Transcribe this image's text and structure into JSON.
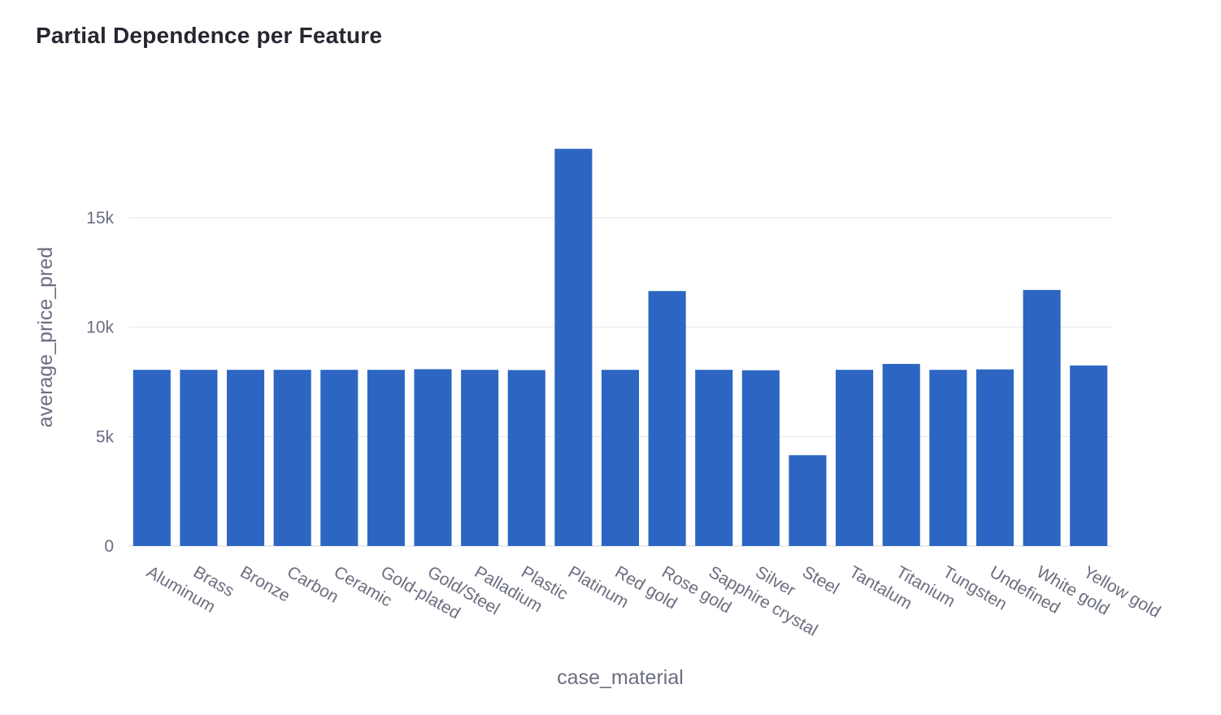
{
  "title": "Partial Dependence per Feature",
  "chart_data": {
    "type": "bar",
    "title": "Partial Dependence per Feature",
    "xlabel": "case_material",
    "ylabel": "average_price_pred",
    "categories": [
      "Aluminum",
      "Brass",
      "Bronze",
      "Carbon",
      "Ceramic",
      "Gold-plated",
      "Gold/Steel",
      "Palladium",
      "Plastic",
      "Platinum",
      "Red gold",
      "Rose gold",
      "Sapphire crystal",
      "Silver",
      "Steel",
      "Tantalum",
      "Titanium",
      "Tungsten",
      "Undefined",
      "White gold",
      "Yellow gold"
    ],
    "values": [
      8050,
      8050,
      8050,
      8050,
      8050,
      8050,
      8080,
      8050,
      8040,
      18150,
      8050,
      11650,
      8050,
      8030,
      4150,
      8050,
      8320,
      8050,
      8070,
      11700,
      8250
    ],
    "yticks": [
      0,
      5000,
      10000,
      15000
    ],
    "ytick_labels": [
      "0",
      "5k",
      "10k",
      "15k"
    ],
    "ylim": [
      0,
      20000
    ],
    "bar_color": "#2c66c2",
    "grid": true,
    "legend": "none"
  }
}
